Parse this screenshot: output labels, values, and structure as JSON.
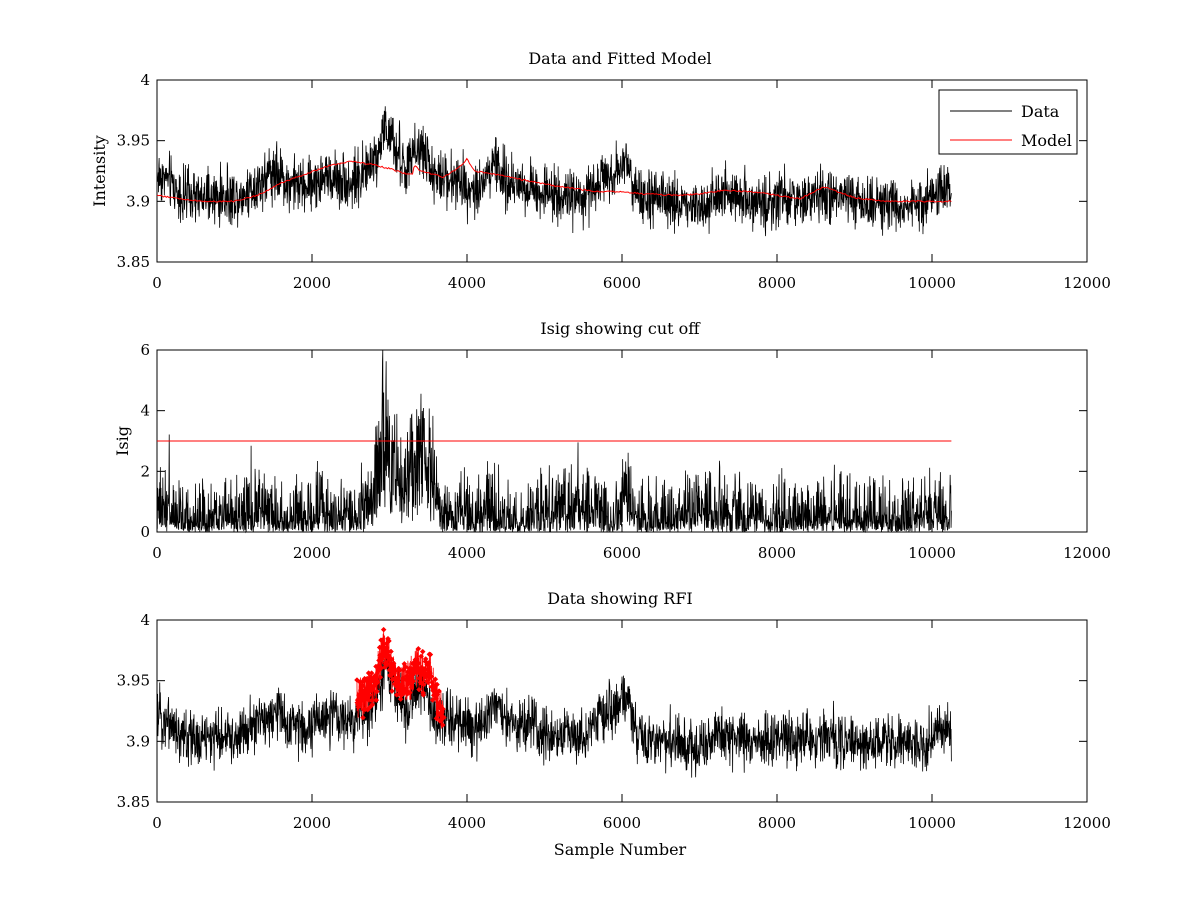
{
  "chart_data": [
    {
      "id": "panel1",
      "type": "line",
      "title": "Data and Fitted Model",
      "xlabel": "",
      "ylabel": "Intensity",
      "xlim": [
        0,
        12000
      ],
      "ylim": [
        3.85,
        4.0
      ],
      "xticks": [
        0,
        2000,
        4000,
        6000,
        8000,
        10000,
        12000
      ],
      "yticks": [
        3.85,
        3.9,
        3.95,
        4.0
      ],
      "xtick_labels": [
        "0",
        "2000",
        "4000",
        "6000",
        "8000",
        "10000",
        "12000"
      ],
      "ytick_labels": [
        "3.85",
        "3.9",
        "3.95",
        "4"
      ],
      "legend": {
        "position": "top-right",
        "entries": [
          "Data",
          "Model"
        ]
      },
      "series": [
        {
          "name": "Data",
          "color": "#000000",
          "kind": "noisy",
          "noise": 0.011,
          "trend_x": [
            0,
            150,
            300,
            500,
            800,
            1100,
            1300,
            1500,
            1700,
            1900,
            2100,
            2300,
            2500,
            2700,
            2850,
            2950,
            3000,
            3100,
            3200,
            3300,
            3400,
            3500,
            3600,
            3750,
            3900,
            4100,
            4300,
            4350,
            4500,
            4800,
            5000,
            5300,
            5500,
            5700,
            5900,
            6050,
            6100,
            6200,
            6300,
            6500,
            6800,
            7000,
            7200,
            7500,
            7800,
            8000,
            8300,
            8600,
            8800,
            9000,
            9300,
            9500,
            9700,
            9900,
            10000,
            10100,
            10250
          ],
          "trend_y": [
            3.922,
            3.918,
            3.905,
            3.902,
            3.903,
            3.905,
            3.915,
            3.925,
            3.915,
            3.912,
            3.918,
            3.92,
            3.915,
            3.925,
            3.94,
            3.965,
            3.95,
            3.94,
            3.925,
            3.935,
            3.945,
            3.935,
            3.915,
            3.92,
            3.915,
            3.91,
            3.925,
            3.935,
            3.915,
            3.912,
            3.908,
            3.905,
            3.9,
            3.92,
            3.925,
            3.935,
            3.925,
            3.905,
            3.9,
            3.9,
            3.898,
            3.895,
            3.905,
            3.905,
            3.898,
            3.902,
            3.9,
            3.905,
            3.902,
            3.9,
            3.9,
            3.895,
            3.898,
            3.895,
            3.905,
            3.91,
            3.91
          ]
        },
        {
          "name": "Model",
          "color": "#ff0000",
          "kind": "smooth",
          "x": [
            0,
            300,
            600,
            1000,
            1300,
            1600,
            1900,
            2200,
            2500,
            2800,
            3000,
            3200,
            3300,
            3320,
            3400,
            3700,
            3900,
            4000,
            4100,
            4300,
            4700,
            5200,
            5700,
            6000,
            6300,
            6700,
            7000,
            7300,
            7700,
            8000,
            8300,
            8600,
            8700,
            9000,
            9400,
            9800,
            10250
          ],
          "y": [
            3.905,
            3.902,
            3.9,
            3.9,
            3.905,
            3.915,
            3.922,
            3.929,
            3.933,
            3.93,
            3.927,
            3.923,
            3.922,
            3.93,
            3.925,
            3.92,
            3.928,
            3.935,
            3.925,
            3.923,
            3.918,
            3.912,
            3.908,
            3.908,
            3.906,
            3.905,
            3.906,
            3.909,
            3.908,
            3.905,
            3.902,
            3.912,
            3.91,
            3.903,
            3.9,
            3.9,
            3.9
          ]
        }
      ]
    },
    {
      "id": "panel2",
      "type": "line",
      "title": "Isig showing cut off",
      "xlabel": "",
      "ylabel": "Isig",
      "xlim": [
        0,
        12000
      ],
      "ylim": [
        0,
        6
      ],
      "xticks": [
        0,
        2000,
        4000,
        6000,
        8000,
        10000,
        12000
      ],
      "yticks": [
        0,
        2,
        4,
        6
      ],
      "xtick_labels": [
        "0",
        "2000",
        "4000",
        "6000",
        "8000",
        "10000",
        "12000"
      ],
      "ytick_labels": [
        "0",
        "2",
        "4",
        "6"
      ],
      "series": [
        {
          "name": "Isig",
          "color": "#000000",
          "kind": "abs-noisy",
          "noise": 0.55,
          "trend_x": [
            0,
            200,
            300,
            600,
            1000,
            1400,
            1600,
            1900,
            2100,
            2300,
            2600,
            2800,
            2900,
            2950,
            3000,
            3100,
            3200,
            3350,
            3450,
            3550,
            3700,
            4000,
            4300,
            4600,
            5000,
            5500,
            5900,
            6050,
            6200,
            6600,
            7000,
            7300,
            7600,
            8000,
            8300,
            8600,
            9000,
            9400,
            9800,
            10250
          ],
          "trend_y": [
            0.9,
            0.7,
            0.3,
            0.5,
            0.5,
            1.0,
            0.4,
            0.6,
            1.0,
            0.5,
            0.6,
            1.5,
            3.4,
            4.0,
            3.2,
            1.8,
            1.6,
            2.6,
            3.0,
            2.0,
            0.5,
            0.7,
            0.9,
            0.4,
            0.7,
            0.9,
            0.6,
            1.4,
            0.7,
            0.6,
            0.9,
            0.9,
            0.6,
            0.7,
            0.5,
            0.7,
            0.7,
            0.6,
            0.6,
            0.6
          ]
        },
        {
          "name": "Cut off",
          "color": "#ff0000",
          "kind": "line",
          "x": [
            0,
            10250
          ],
          "y": [
            3,
            3
          ]
        }
      ]
    },
    {
      "id": "panel3",
      "type": "line",
      "title": "Data showing RFI",
      "xlabel": "Sample Number",
      "ylabel": "",
      "xlim": [
        0,
        12000
      ],
      "ylim": [
        3.85,
        4.0
      ],
      "xticks": [
        0,
        2000,
        4000,
        6000,
        8000,
        10000,
        12000
      ],
      "yticks": [
        3.85,
        3.9,
        3.95,
        4.0
      ],
      "xtick_labels": [
        "0",
        "2000",
        "4000",
        "6000",
        "8000",
        "10000",
        "12000"
      ],
      "ytick_labels": [
        "3.85",
        "3.9",
        "3.95",
        "4"
      ],
      "series": [
        {
          "name": "Data",
          "color": "#000000",
          "kind": "noisy",
          "noise": 0.011,
          "trend_x": [
            0,
            150,
            300,
            500,
            800,
            1100,
            1300,
            1500,
            1700,
            1900,
            2100,
            2300,
            2500,
            2700,
            2850,
            2950,
            3000,
            3100,
            3200,
            3300,
            3400,
            3500,
            3600,
            3750,
            3900,
            4100,
            4300,
            4350,
            4500,
            4800,
            5000,
            5300,
            5500,
            5700,
            5900,
            6050,
            6100,
            6200,
            6300,
            6500,
            6800,
            7000,
            7200,
            7500,
            7800,
            8000,
            8300,
            8600,
            8800,
            9000,
            9300,
            9500,
            9700,
            9900,
            10000,
            10100,
            10250
          ],
          "trend_y": [
            3.922,
            3.918,
            3.905,
            3.902,
            3.903,
            3.905,
            3.915,
            3.925,
            3.915,
            3.912,
            3.918,
            3.92,
            3.915,
            3.925,
            3.94,
            3.965,
            3.95,
            3.94,
            3.925,
            3.935,
            3.945,
            3.935,
            3.915,
            3.92,
            3.915,
            3.91,
            3.925,
            3.935,
            3.915,
            3.912,
            3.908,
            3.905,
            3.9,
            3.92,
            3.925,
            3.935,
            3.925,
            3.905,
            3.9,
            3.9,
            3.898,
            3.895,
            3.905,
            3.905,
            3.898,
            3.902,
            3.9,
            3.905,
            3.902,
            3.9,
            3.9,
            3.895,
            3.898,
            3.895,
            3.905,
            3.91,
            3.91
          ]
        },
        {
          "name": "RFI",
          "color": "#ff0000",
          "kind": "markers",
          "noise": 0.01,
          "trend_x": [
            2580,
            2700,
            2800,
            2900,
            2950,
            3000,
            3100,
            3200,
            3300,
            3350,
            3450,
            3500,
            3550,
            3600,
            3700
          ],
          "trend_y": [
            3.935,
            3.94,
            3.945,
            3.97,
            3.975,
            3.965,
            3.95,
            3.945,
            3.955,
            3.96,
            3.955,
            3.96,
            3.95,
            3.935,
            3.92
          ]
        }
      ]
    }
  ]
}
